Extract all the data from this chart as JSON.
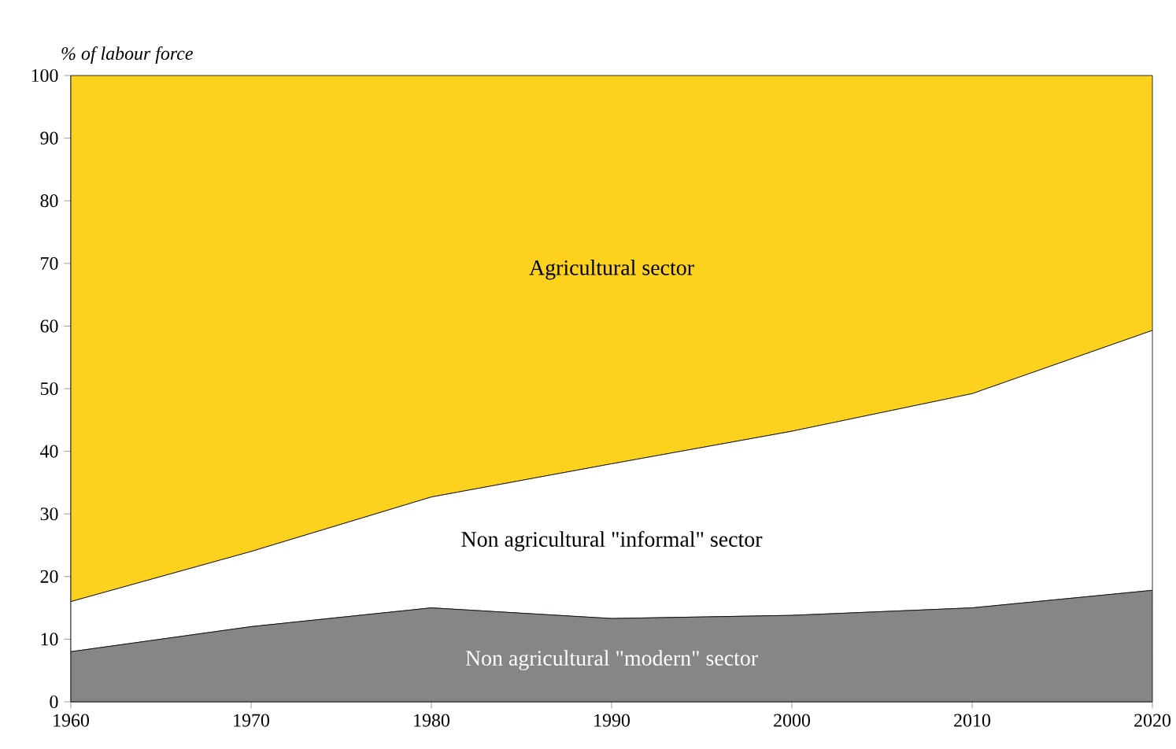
{
  "chart_data": {
    "type": "area",
    "stacked": true,
    "ylabel": "% of labour force",
    "x": [
      1960,
      1970,
      1980,
      1990,
      2000,
      2010,
      2020
    ],
    "xlim": [
      1960,
      2020
    ],
    "xticks": [
      1960,
      1970,
      1980,
      1990,
      2000,
      2010,
      2020
    ],
    "ylim": [
      0,
      100
    ],
    "yticks": [
      0,
      10,
      20,
      30,
      40,
      50,
      60,
      70,
      80,
      90,
      100
    ],
    "grid": false,
    "series": [
      {
        "name": "Non agricultural \"modern\" sector",
        "color": "#858688",
        "values": [
          8,
          12,
          15,
          13.3,
          13.8,
          15,
          17.8
        ]
      },
      {
        "name": "Non agricultural \"informal\" sector",
        "color": "#ffffff",
        "values": [
          8,
          12,
          17.7,
          24.7,
          29.4,
          34.2,
          41.5
        ]
      },
      {
        "name": "Agricultural sector",
        "color": "#fcd21e",
        "values": [
          84,
          76,
          67.3,
          62,
          56.8,
          50.8,
          40.7
        ]
      }
    ]
  }
}
